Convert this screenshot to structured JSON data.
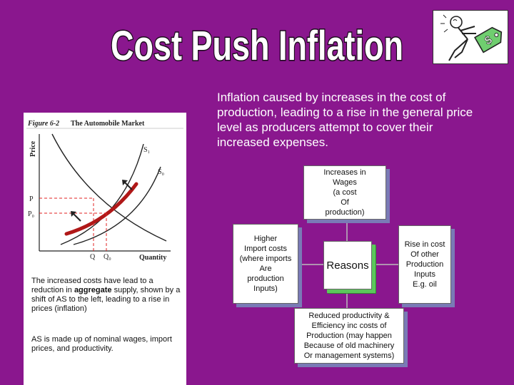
{
  "slide": {
    "title": "Cost Push Inflation",
    "intro": "Inflation caused by increases in the cost of production, leading to a rise in the general price level as producers attempt to cover their increased expenses."
  },
  "figure": {
    "label": "Figure 6-2",
    "title": "The Automobile Market",
    "axis_y": "Price",
    "axis_x": "Quantity",
    "curve_s1": "S₁",
    "curve_s0": "S₀",
    "price_p": "P",
    "price_p0": "P₀",
    "qty_q": "Q",
    "qty_q0": "Q₀"
  },
  "caption": {
    "para1_before": "The increased costs have lead to a reduction in ",
    "para1_bold": "aggregate",
    "para1_after": " supply, shown by a shift of AS to the left, leading to a rise in prices (inflation)",
    "para2": "AS is made up of nominal wages, import prices, and productivity."
  },
  "diagram": {
    "center": "Reasons",
    "top": "Increases in\nWages\n(a cost\nOf\nproduction)",
    "left": "Higher\nImport costs\n(where imports\nAre\nproduction\nInputs)",
    "right": "Rise in cost\nOf other\nProduction\nInputs\nE.g. oil",
    "bottom": "Reduced productivity &\nEfficiency inc costs of\nProduction (may happen\nBecause of old machinery\nOr management systems)"
  },
  "colors": {
    "background": "#8a178e",
    "title_fill": "#ffffff",
    "title_stroke": "#1a0a1a",
    "curve": "#b01818",
    "guide": "#e02020"
  }
}
